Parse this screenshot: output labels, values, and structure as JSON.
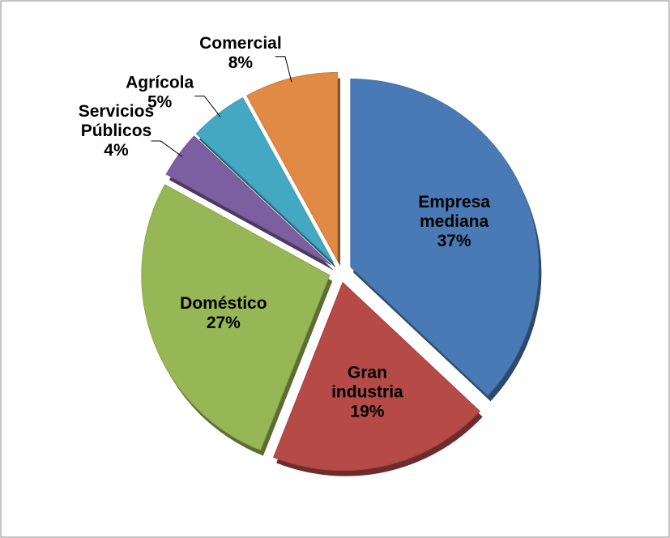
{
  "chart_data": {
    "type": "pie",
    "categories": [
      "Empresa mediana",
      "Gran industria",
      "Doméstico",
      "Servicios Públicos",
      "Agrícola",
      "Comercial"
    ],
    "values": [
      37,
      19,
      27,
      4,
      5,
      8
    ],
    "value_labels": [
      "37%",
      "19%",
      "27%",
      "4%",
      "5%",
      "8%"
    ],
    "colors": [
      "#4a7ab5",
      "#b54a47",
      "#97b655",
      "#7c5fa0",
      "#45a8c3",
      "#e08a45"
    ]
  }
}
